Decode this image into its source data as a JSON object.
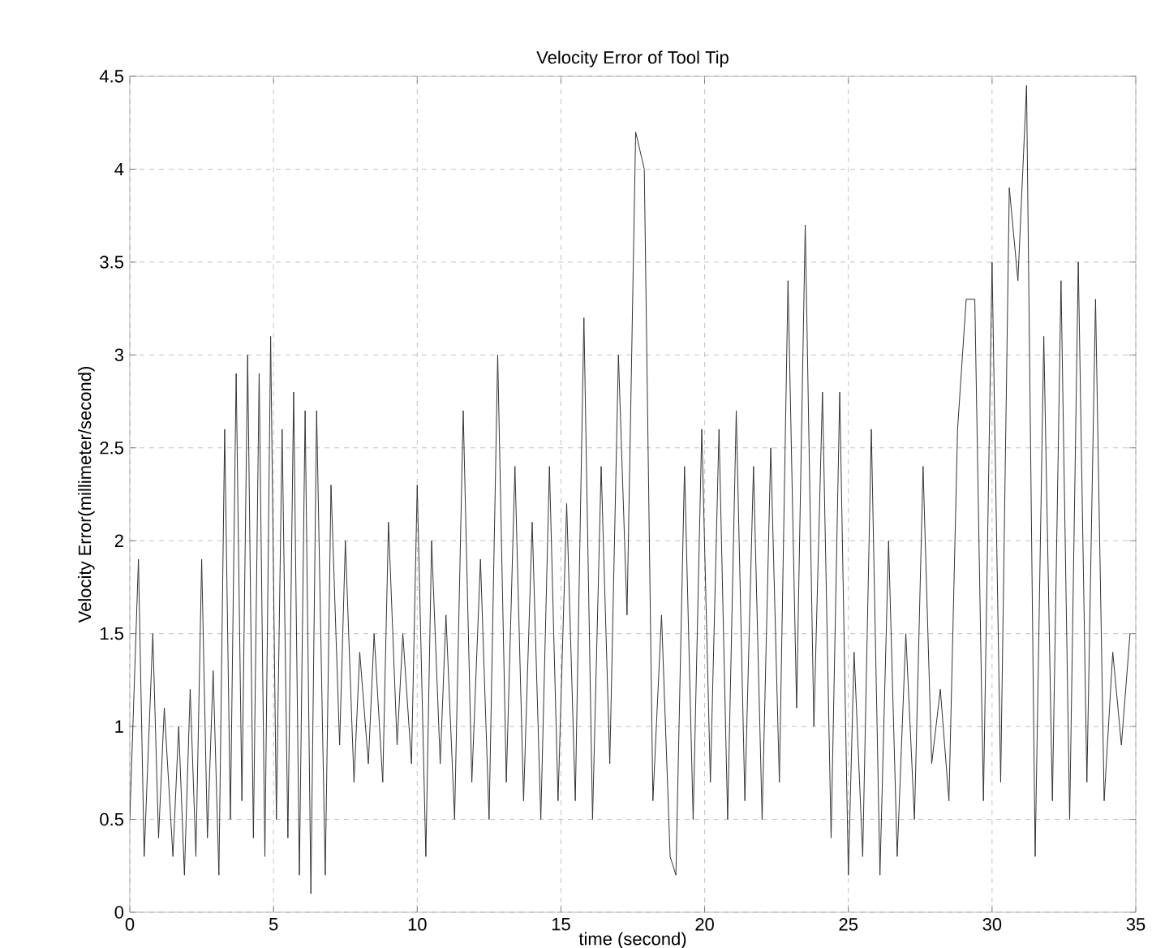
{
  "chart_data": {
    "type": "line",
    "title": "Velocity Error of Tool Tip",
    "xlabel": "time (second)",
    "ylabel": "Velocity Error(millimeter/second)",
    "xlim": [
      0,
      35
    ],
    "ylim": [
      0,
      4.5
    ],
    "xticks": [
      0,
      5,
      10,
      15,
      20,
      25,
      30,
      35
    ],
    "yticks": [
      0,
      0.5,
      1,
      1.5,
      2,
      2.5,
      3,
      3.5,
      4,
      4.5
    ],
    "grid": true,
    "series": [
      {
        "color": "#333333",
        "x": [
          0,
          0.3,
          0.5,
          0.8,
          1.0,
          1.2,
          1.5,
          1.7,
          1.9,
          2.1,
          2.3,
          2.5,
          2.7,
          2.9,
          3.1,
          3.3,
          3.5,
          3.7,
          3.9,
          4.1,
          4.3,
          4.5,
          4.7,
          4.9,
          5.1,
          5.3,
          5.5,
          5.7,
          5.9,
          6.1,
          6.3,
          6.5,
          6.8,
          7.0,
          7.3,
          7.5,
          7.8,
          8.0,
          8.3,
          8.5,
          8.8,
          9.0,
          9.3,
          9.5,
          9.8,
          10.0,
          10.3,
          10.5,
          10.8,
          11.0,
          11.3,
          11.6,
          11.9,
          12.2,
          12.5,
          12.8,
          13.1,
          13.4,
          13.7,
          14.0,
          14.3,
          14.6,
          14.9,
          15.2,
          15.5,
          15.8,
          16.1,
          16.4,
          16.7,
          17.0,
          17.3,
          17.6,
          17.9,
          18.2,
          18.5,
          18.8,
          19.0,
          19.3,
          19.6,
          19.9,
          20.2,
          20.5,
          20.8,
          21.1,
          21.4,
          21.7,
          22.0,
          22.3,
          22.6,
          22.9,
          23.2,
          23.5,
          23.8,
          24.1,
          24.4,
          24.7,
          25.0,
          25.2,
          25.5,
          25.8,
          26.1,
          26.4,
          26.7,
          27.0,
          27.3,
          27.6,
          27.9,
          28.2,
          28.5,
          28.8,
          29.1,
          29.4,
          29.7,
          30.0,
          30.3,
          30.6,
          30.9,
          31.2,
          31.5,
          31.8,
          32.1,
          32.4,
          32.7,
          33.0,
          33.3,
          33.6,
          33.9,
          34.2,
          34.5,
          34.8
        ],
        "values": [
          0.5,
          1.9,
          0.3,
          1.5,
          0.4,
          1.1,
          0.3,
          1.0,
          0.2,
          1.2,
          0.3,
          1.9,
          0.4,
          1.3,
          0.2,
          2.6,
          0.5,
          2.9,
          0.6,
          3.0,
          0.4,
          2.9,
          0.3,
          3.1,
          0.5,
          2.6,
          0.4,
          2.8,
          0.2,
          2.7,
          0.1,
          2.7,
          0.2,
          2.3,
          0.9,
          2.0,
          0.7,
          1.4,
          0.8,
          1.5,
          0.7,
          2.1,
          0.9,
          1.5,
          0.8,
          2.3,
          0.3,
          2.0,
          0.8,
          1.6,
          0.5,
          2.7,
          0.7,
          1.9,
          0.5,
          3.0,
          0.7,
          2.4,
          0.6,
          2.1,
          0.5,
          2.4,
          0.6,
          2.2,
          0.6,
          3.2,
          0.5,
          2.4,
          0.8,
          3.0,
          1.6,
          4.2,
          4.0,
          0.6,
          1.6,
          0.3,
          0.2,
          2.4,
          0.5,
          2.6,
          0.7,
          2.6,
          0.5,
          2.7,
          0.6,
          2.4,
          0.5,
          2.5,
          0.7,
          3.4,
          1.1,
          3.7,
          1.0,
          2.8,
          0.4,
          2.8,
          0.2,
          1.4,
          0.3,
          2.6,
          0.2,
          2.0,
          0.3,
          1.5,
          0.5,
          2.4,
          0.8,
          1.2,
          0.6,
          2.6,
          3.3,
          3.3,
          0.6,
          3.5,
          0.7,
          3.9,
          3.4,
          4.45,
          0.3,
          3.1,
          0.6,
          3.4,
          0.5,
          3.5,
          0.7,
          3.3,
          0.6,
          1.4,
          0.9,
          1.5
        ]
      }
    ]
  }
}
